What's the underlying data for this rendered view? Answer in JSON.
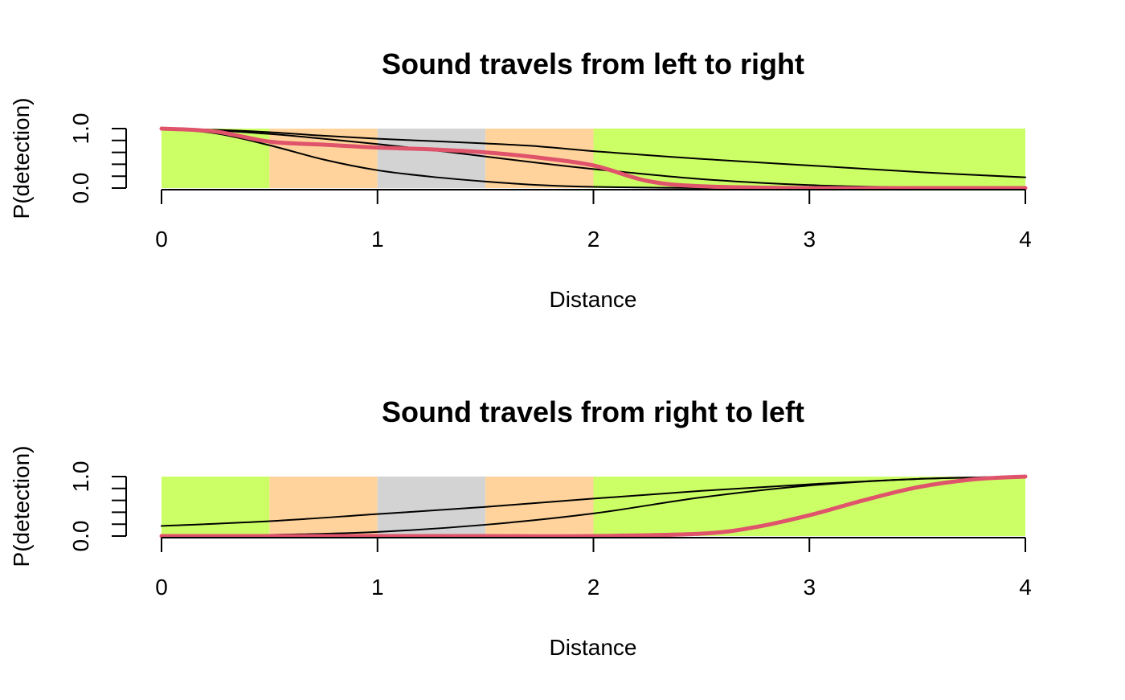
{
  "chart_data": [
    {
      "type": "line",
      "title": "Sound travels from left to right",
      "xlabel": "Distance",
      "ylabel": "P(detection)",
      "xlim": [
        0,
        4
      ],
      "ylim": [
        0,
        1
      ],
      "xticks": [
        "0",
        "1",
        "2",
        "3",
        "4"
      ],
      "yticks": [
        "0.0",
        "1.0"
      ],
      "habitat_bands": [
        {
          "from": 0,
          "to": 0.5,
          "color": "#ccff66"
        },
        {
          "from": 0.5,
          "to": 1.0,
          "color": "#ffd39b"
        },
        {
          "from": 1.0,
          "to": 1.5,
          "color": "#d3d3d3"
        },
        {
          "from": 1.5,
          "to": 2.0,
          "color": "#ffd39b"
        },
        {
          "from": 2.0,
          "to": 4.0,
          "color": "#ccff66"
        }
      ],
      "series": [
        {
          "color": "#000000",
          "stroke": 2,
          "x": [
            0,
            0.25,
            0.5,
            0.75,
            1.0,
            1.25,
            1.5,
            1.75,
            2.0,
            2.5,
            3.0,
            3.5,
            4.0
          ],
          "y": [
            1.0,
            0.98,
            0.94,
            0.88,
            0.83,
            0.79,
            0.75,
            0.7,
            0.62,
            0.49,
            0.38,
            0.27,
            0.18
          ]
        },
        {
          "color": "#000000",
          "stroke": 2,
          "x": [
            0,
            0.25,
            0.5,
            0.75,
            1.0,
            1.25,
            1.5,
            1.75,
            2.0,
            2.5,
            3.0,
            3.5,
            4.0
          ],
          "y": [
            1.0,
            0.97,
            0.91,
            0.83,
            0.74,
            0.64,
            0.53,
            0.42,
            0.32,
            0.15,
            0.05,
            0.01,
            0.0
          ]
        },
        {
          "color": "#000000",
          "stroke": 2,
          "x": [
            0,
            0.25,
            0.5,
            0.75,
            1.0,
            1.25,
            1.5,
            1.75,
            2.0,
            2.5,
            3.0,
            3.5,
            4.0
          ],
          "y": [
            1.0,
            0.92,
            0.72,
            0.48,
            0.3,
            0.19,
            0.11,
            0.05,
            0.02,
            0.0,
            0.0,
            0.0,
            0.0
          ]
        },
        {
          "color": "#df536b",
          "stroke": 5,
          "x": [
            0,
            0.25,
            0.5,
            0.75,
            1.0,
            1.25,
            1.5,
            1.75,
            2.0,
            2.25,
            2.5,
            3.0,
            3.5,
            4.0
          ],
          "y": [
            1.0,
            0.95,
            0.78,
            0.73,
            0.68,
            0.65,
            0.6,
            0.51,
            0.38,
            0.12,
            0.03,
            0.0,
            0.0,
            0.0
          ]
        }
      ]
    },
    {
      "type": "line",
      "title": "Sound travels from right to left",
      "xlabel": "Distance",
      "ylabel": "P(detection)",
      "xlim": [
        0,
        4
      ],
      "ylim": [
        0,
        1
      ],
      "xticks": [
        "0",
        "1",
        "2",
        "3",
        "4"
      ],
      "yticks": [
        "0.0",
        "1.0"
      ],
      "habitat_bands": [
        {
          "from": 0,
          "to": 0.5,
          "color": "#ccff66"
        },
        {
          "from": 0.5,
          "to": 1.0,
          "color": "#ffd39b"
        },
        {
          "from": 1.0,
          "to": 1.5,
          "color": "#d3d3d3"
        },
        {
          "from": 1.5,
          "to": 2.0,
          "color": "#ffd39b"
        },
        {
          "from": 2.0,
          "to": 4.0,
          "color": "#ccff66"
        }
      ],
      "series": [
        {
          "color": "#000000",
          "stroke": 2,
          "x": [
            0,
            0.5,
            1.0,
            1.5,
            2.0,
            2.5,
            3.0,
            3.5,
            4.0
          ],
          "y": [
            0.17,
            0.25,
            0.37,
            0.49,
            0.63,
            0.76,
            0.87,
            0.96,
            1.0
          ]
        },
        {
          "color": "#000000",
          "stroke": 2,
          "x": [
            0,
            0.5,
            1.0,
            1.5,
            2.0,
            2.5,
            3.0,
            3.5,
            4.0
          ],
          "y": [
            0.0,
            0.02,
            0.07,
            0.19,
            0.38,
            0.65,
            0.85,
            0.96,
            1.0
          ]
        },
        {
          "color": "#df536b",
          "stroke": 5,
          "x": [
            0,
            0.5,
            1.0,
            1.5,
            2.0,
            2.5,
            2.75,
            3.0,
            3.25,
            3.5,
            3.75,
            4.0
          ],
          "y": [
            0.0,
            0.0,
            0.0,
            0.0,
            0.0,
            0.04,
            0.15,
            0.35,
            0.6,
            0.82,
            0.95,
            1.0
          ]
        }
      ]
    }
  ]
}
